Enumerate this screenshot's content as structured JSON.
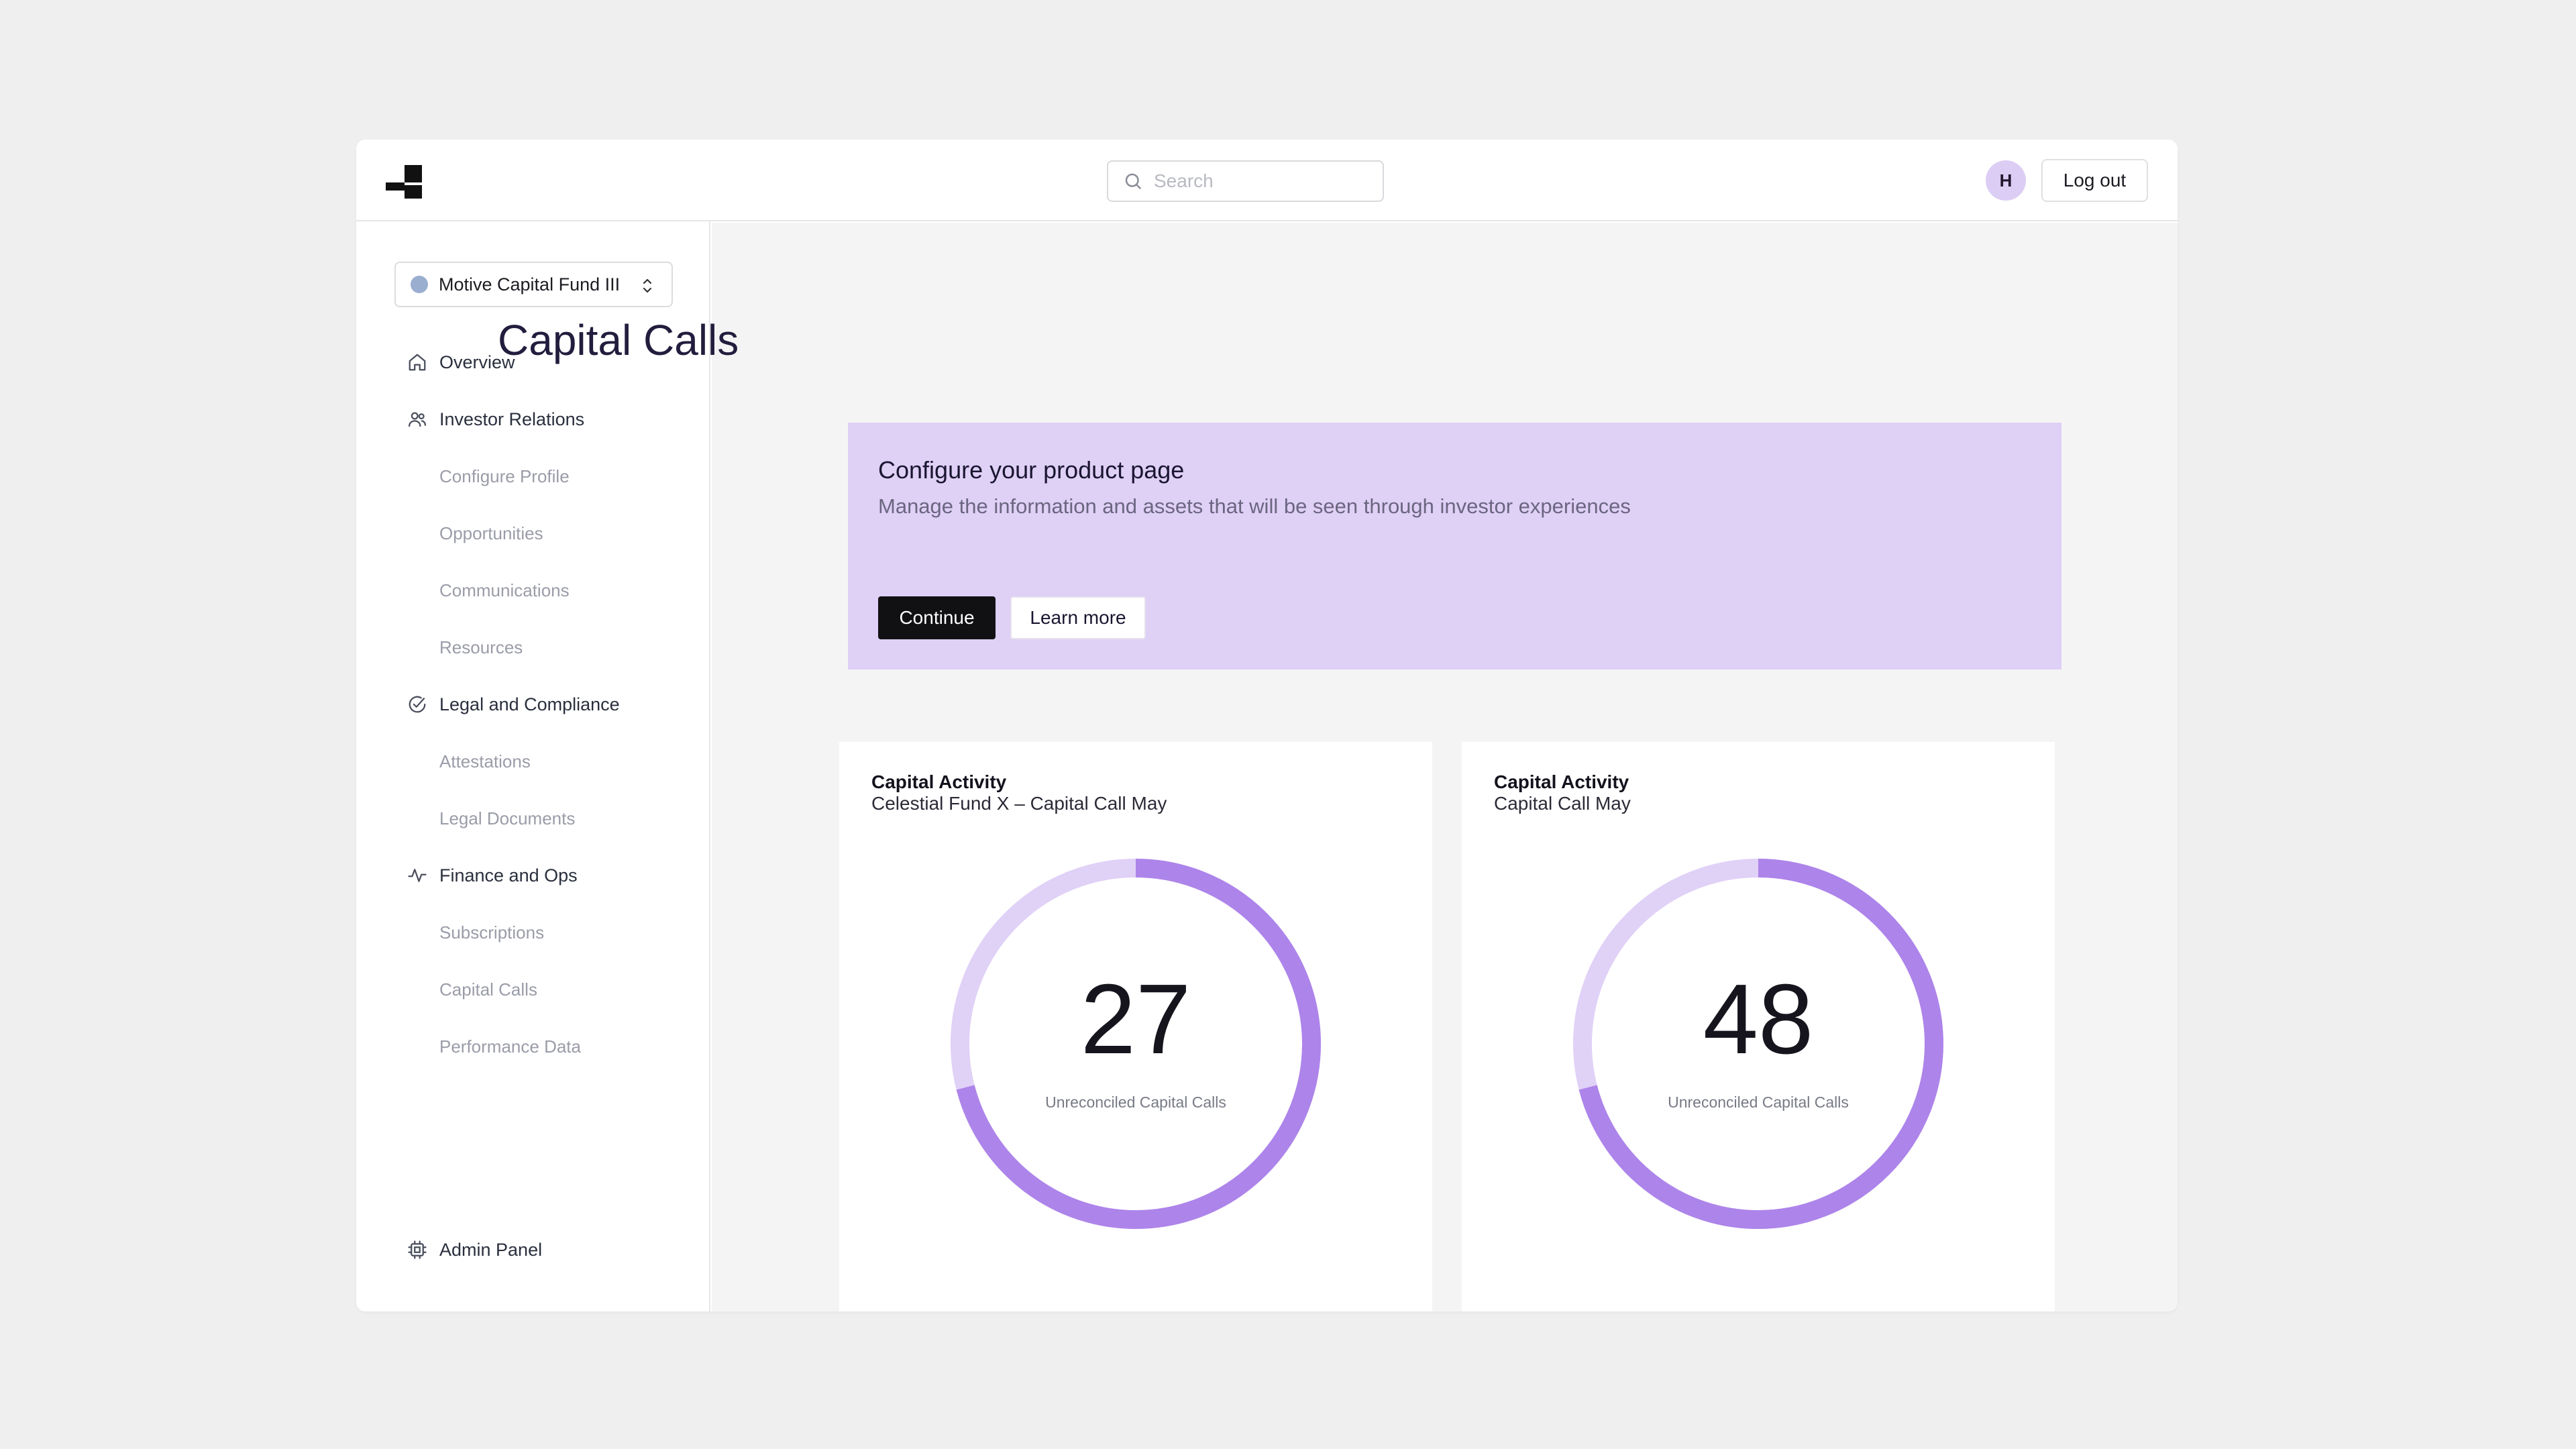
{
  "header": {
    "search_placeholder": "Search",
    "avatar_initial": "H",
    "logout_label": "Log out"
  },
  "sidebar": {
    "fund_selector": "Motive Capital Fund III",
    "sections": [
      {
        "label": "Overview",
        "icon": "home-icon"
      },
      {
        "label": "Investor Relations",
        "icon": "users-icon",
        "children": [
          "Configure Profile",
          "Opportunities",
          "Communications",
          "Resources"
        ]
      },
      {
        "label": "Legal and Compliance",
        "icon": "check-circle-icon",
        "children": [
          "Attestations",
          "Legal Documents"
        ]
      },
      {
        "label": "Finance and Ops",
        "icon": "activity-icon",
        "children": [
          "Subscriptions",
          "Capital Calls",
          "Performance Data"
        ]
      }
    ],
    "footer_item": {
      "label": "Admin Panel",
      "icon": "cpu-icon"
    }
  },
  "main": {
    "title": "Capital Calls",
    "banner": {
      "title": "Configure your product page",
      "description": "Manage the information and assets that will be seen through investor experiences",
      "continue_label": "Continue",
      "learn_more_label": "Learn more"
    },
    "cards": [
      {
        "title": "Capital Activity",
        "subtitle": "Celestial Fund X – Capital Call May",
        "value": "27",
        "label": "Unreconciled Capital Calls",
        "progress": 0.71
      },
      {
        "title": "Capital Activity",
        "subtitle": "Capital Call May",
        "value": "48",
        "label": "Unreconciled Capital Calls",
        "progress": 0.71
      }
    ]
  },
  "colors": {
    "accent": "#ad84ea",
    "accent_light": "#e0d1f7",
    "banner_bg": "#dfd0f6",
    "primary_button": "#111114"
  }
}
